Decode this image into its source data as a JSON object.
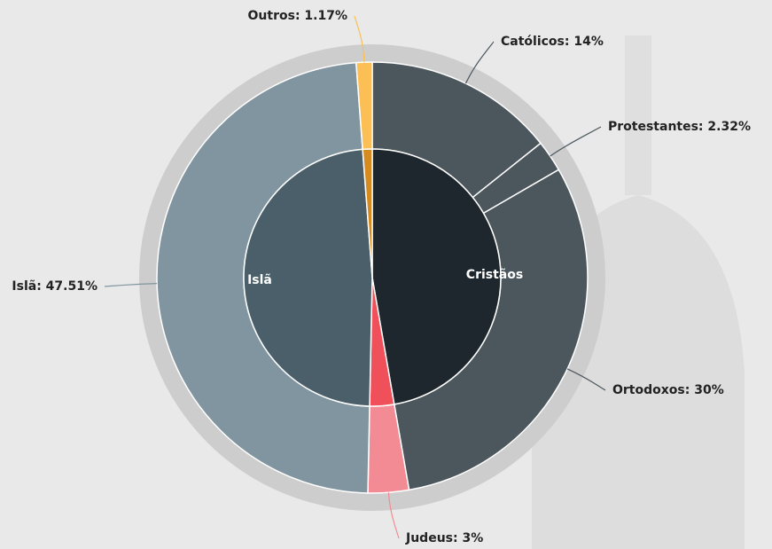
{
  "chart_data": {
    "type": "sunburst",
    "inner": {
      "categories": [
        "Cristãos",
        null,
        "Islã",
        null
      ],
      "values": [
        46.32,
        3,
        47.51,
        1.17
      ],
      "colors": [
        "#1e272d",
        "#f0505a",
        "#4a5f6a",
        "#d58b1f"
      ]
    },
    "outer": {
      "values": [
        14,
        2.32,
        30,
        3,
        47.51,
        1.17
      ],
      "value_labels": [
        "Católicos: 14%",
        "Protestantes:  2.32%",
        "Ortodoxos: 30%",
        "Judeus: 3%",
        "Islã: 47.51%",
        "Outros: 1.17%"
      ],
      "colors": [
        "#4b565d",
        "#4b565d",
        "#4b565d",
        "#f28b94",
        "#8195a0",
        "#fbbf55"
      ],
      "leader_colors": [
        "#4b565d",
        "#4b565d",
        "#4b565d",
        "#f28b94",
        "#8195a0",
        "#fbbf55"
      ]
    }
  }
}
